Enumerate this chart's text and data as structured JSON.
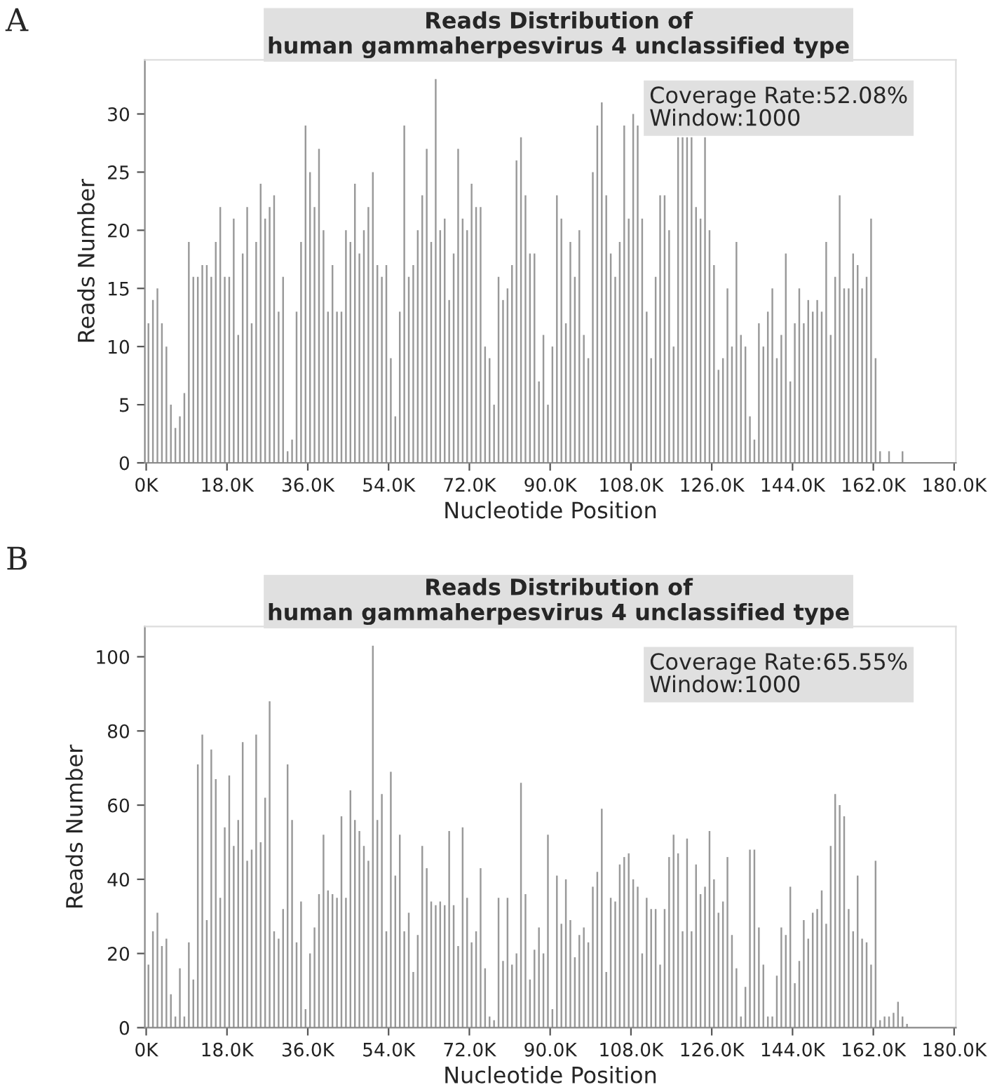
{
  "chart_data": [
    {
      "type": "bar",
      "title": "Reads Distribution of\nhuman gammaherpesvirus 4 unclassified type",
      "xlabel": "Nucleotide Position",
      "ylabel": "Reads Number",
      "color": "#999999",
      "annotations": [
        "A",
        "Coverage Rate:52.08%\nWindow:1000"
      ],
      "x": [
        500,
        1500,
        2500,
        3500,
        4500,
        5500,
        6500,
        7500,
        8500,
        9500,
        10500,
        11500,
        12500,
        13500,
        14500,
        15500,
        16500,
        17500,
        18500,
        19500,
        20500,
        21500,
        22500,
        23500,
        24500,
        25500,
        26500,
        27500,
        28500,
        29500,
        30500,
        31500,
        32500,
        33500,
        34500,
        35500,
        36500,
        37500,
        38500,
        39500,
        40500,
        41500,
        42500,
        43500,
        44500,
        45500,
        46500,
        47500,
        48500,
        49500,
        50500,
        51500,
        52500,
        53500,
        54500,
        55500,
        56500,
        57500,
        58500,
        59500,
        60500,
        61500,
        62500,
        63500,
        64500,
        65500,
        66500,
        67500,
        68500,
        69500,
        70500,
        71500,
        72500,
        73500,
        74500,
        75500,
        76500,
        77500,
        78500,
        79500,
        80500,
        81500,
        82500,
        83500,
        84500,
        85500,
        86500,
        87500,
        88500,
        89500,
        90500,
        91500,
        92500,
        93500,
        94500,
        95500,
        96500,
        97500,
        98500,
        99500,
        100500,
        101500,
        102500,
        103500,
        104500,
        105500,
        106500,
        107500,
        108500,
        109500,
        110500,
        111500,
        112500,
        113500,
        114500,
        115500,
        116500,
        117500,
        118500,
        119500,
        120500,
        121500,
        122500,
        123500,
        124500,
        125500,
        126500,
        127500,
        128500,
        129500,
        130500,
        131500,
        132500,
        133500,
        134500,
        135500,
        136500,
        137500,
        138500,
        139500,
        140500,
        141500,
        142500,
        143500,
        144500,
        145500,
        146500,
        147500,
        148500,
        149500,
        150500,
        151500,
        152500,
        153500,
        154500,
        155500,
        156500,
        157500,
        158500,
        159500,
        160500,
        161500,
        162500,
        163500,
        164500,
        165500,
        166500,
        167500,
        168500
      ],
      "values": [
        12,
        14,
        15,
        12,
        10,
        5,
        3,
        4,
        6,
        19,
        16,
        16,
        17,
        17,
        16,
        19,
        22,
        16,
        16,
        21,
        11,
        18,
        22,
        12,
        19,
        24,
        21,
        22,
        23,
        13,
        16,
        1,
        2,
        13,
        19,
        29,
        25,
        22,
        27,
        20,
        13,
        17,
        13,
        13,
        20,
        19,
        24,
        18,
        20,
        22,
        25,
        17,
        16,
        17,
        9,
        4,
        13,
        29,
        16,
        17,
        20,
        23,
        27,
        19,
        33,
        20,
        21,
        14,
        18,
        27,
        21,
        20,
        24,
        22,
        22,
        10,
        9,
        5,
        16,
        14,
        15,
        17,
        26,
        28,
        23,
        18,
        18,
        7,
        11,
        5,
        10,
        23,
        21,
        12,
        19,
        16,
        20,
        11,
        9,
        25,
        29,
        31,
        23,
        18,
        16,
        19,
        29,
        21,
        30,
        29,
        21,
        13,
        9,
        16,
        23,
        23,
        20,
        10,
        28,
        28,
        28,
        28,
        22,
        21,
        28,
        20,
        17,
        8,
        9,
        15,
        10,
        19,
        11,
        10,
        4,
        2,
        12,
        10,
        13,
        15,
        9,
        11,
        18,
        7,
        12,
        15,
        12,
        14,
        13,
        14,
        13,
        19,
        11,
        16,
        23,
        15,
        15,
        18,
        17,
        15,
        16,
        21,
        9,
        1,
        0,
        1,
        0,
        0,
        1
      ],
      "xlim": [
        -300,
        180400
      ],
      "ylim": [
        0,
        34.65
      ],
      "xticks": [
        {
          "value": 0,
          "label": "0K"
        },
        {
          "value": 18000,
          "label": "18.0K"
        },
        {
          "value": 36000,
          "label": "36.0K"
        },
        {
          "value": 54000,
          "label": "54.0K"
        },
        {
          "value": 72000,
          "label": "72.0K"
        },
        {
          "value": 90000,
          "label": "90.0K"
        },
        {
          "value": 108000,
          "label": "108.0K"
        },
        {
          "value": 126000,
          "label": "126.0K"
        },
        {
          "value": 144000,
          "label": "144.0K"
        },
        {
          "value": 162000,
          "label": "162.0K"
        },
        {
          "value": 180000,
          "label": "180.0K"
        }
      ],
      "yticks": [
        0,
        5,
        10,
        15,
        20,
        25,
        30
      ]
    },
    {
      "type": "bar",
      "title": "Reads Distribution of\nhuman gammaherpesvirus 4 unclassified type",
      "xlabel": "Nucleotide Position",
      "ylabel": "Reads Number",
      "color": "#999999",
      "annotations": [
        "B",
        "Coverage Rate:65.55%\nWindow:1000"
      ],
      "x": [
        500,
        1500,
        2500,
        3500,
        4500,
        5500,
        6500,
        7500,
        8500,
        9500,
        10500,
        11500,
        12500,
        13500,
        14500,
        15500,
        16500,
        17500,
        18500,
        19500,
        20500,
        21500,
        22500,
        23500,
        24500,
        25500,
        26500,
        27500,
        28500,
        29500,
        30500,
        31500,
        32500,
        33500,
        34500,
        35500,
        36500,
        37500,
        38500,
        39500,
        40500,
        41500,
        42500,
        43500,
        44500,
        45500,
        46500,
        47500,
        48500,
        49500,
        50500,
        51500,
        52500,
        53500,
        54500,
        55500,
        56500,
        57500,
        58500,
        59500,
        60500,
        61500,
        62500,
        63500,
        64500,
        65500,
        66500,
        67500,
        68500,
        69500,
        70500,
        71500,
        72500,
        73500,
        74500,
        75500,
        76500,
        77500,
        78500,
        79500,
        80500,
        81500,
        82500,
        83500,
        84500,
        85500,
        86500,
        87500,
        88500,
        89500,
        90500,
        91500,
        92500,
        93500,
        94500,
        95500,
        96500,
        97500,
        98500,
        99500,
        100500,
        101500,
        102500,
        103500,
        104500,
        105500,
        106500,
        107500,
        108500,
        109500,
        110500,
        111500,
        112500,
        113500,
        114500,
        115500,
        116500,
        117500,
        118500,
        119500,
        120500,
        121500,
        122500,
        123500,
        124500,
        125500,
        126500,
        127500,
        128500,
        129500,
        130500,
        131500,
        132500,
        133500,
        134500,
        135500,
        136500,
        137500,
        138500,
        139500,
        140500,
        141500,
        142500,
        143500,
        144500,
        145500,
        146500,
        147500,
        148500,
        149500,
        150500,
        151500,
        152500,
        153500,
        154500,
        155500,
        156500,
        157500,
        158500,
        159500,
        160500,
        161500,
        162500,
        163500,
        164500,
        165500,
        166500,
        167500,
        168500,
        169500
      ],
      "values": [
        17,
        26,
        31,
        22,
        24,
        9,
        3,
        16,
        3,
        23,
        13,
        71,
        79,
        29,
        75,
        67,
        35,
        54,
        68,
        49,
        56,
        77,
        45,
        48,
        79,
        50,
        62,
        88,
        26,
        24,
        32,
        71,
        56,
        23,
        34,
        5,
        20,
        27,
        36,
        52,
        37,
        36,
        35,
        57,
        35,
        64,
        56,
        53,
        49,
        45,
        103,
        56,
        63,
        26,
        69,
        41,
        52,
        26,
        31,
        15,
        25,
        49,
        43,
        34,
        33,
        34,
        33,
        53,
        33,
        22,
        54,
        35,
        23,
        26,
        43,
        16,
        3,
        2,
        35,
        18,
        35,
        17,
        20,
        66,
        36,
        13,
        21,
        27,
        20,
        52,
        5,
        41,
        28,
        40,
        29,
        19,
        25,
        27,
        23,
        38,
        42,
        59,
        15,
        35,
        34,
        44,
        46,
        47,
        40,
        38,
        20,
        35,
        32,
        32,
        17,
        32,
        46,
        52,
        47,
        26,
        51,
        26,
        44,
        36,
        38,
        53,
        40,
        31,
        34,
        46,
        25,
        16,
        3,
        11,
        48,
        48,
        27,
        17,
        3,
        3,
        14,
        27,
        25,
        38,
        12,
        18,
        29,
        24,
        31,
        32,
        37,
        28,
        49,
        63,
        60,
        57,
        32,
        26,
        41,
        24,
        23,
        17,
        45,
        2,
        3,
        3,
        4,
        7,
        3,
        1
      ],
      "xlim": [
        -300,
        180400
      ],
      "ylim": [
        0,
        108.15
      ],
      "xticks": [
        {
          "value": 0,
          "label": "0K"
        },
        {
          "value": 18000,
          "label": "18.0K"
        },
        {
          "value": 36000,
          "label": "36.0K"
        },
        {
          "value": 54000,
          "label": "54.0K"
        },
        {
          "value": 72000,
          "label": "72.0K"
        },
        {
          "value": 90000,
          "label": "90.0K"
        },
        {
          "value": 108000,
          "label": "108.0K"
        },
        {
          "value": 126000,
          "label": "126.0K"
        },
        {
          "value": 144000,
          "label": "144.0K"
        },
        {
          "value": 162000,
          "label": "162.0K"
        },
        {
          "value": 180000,
          "label": "180.0K"
        }
      ],
      "yticks": [
        0,
        20,
        40,
        60,
        80,
        100
      ]
    }
  ]
}
